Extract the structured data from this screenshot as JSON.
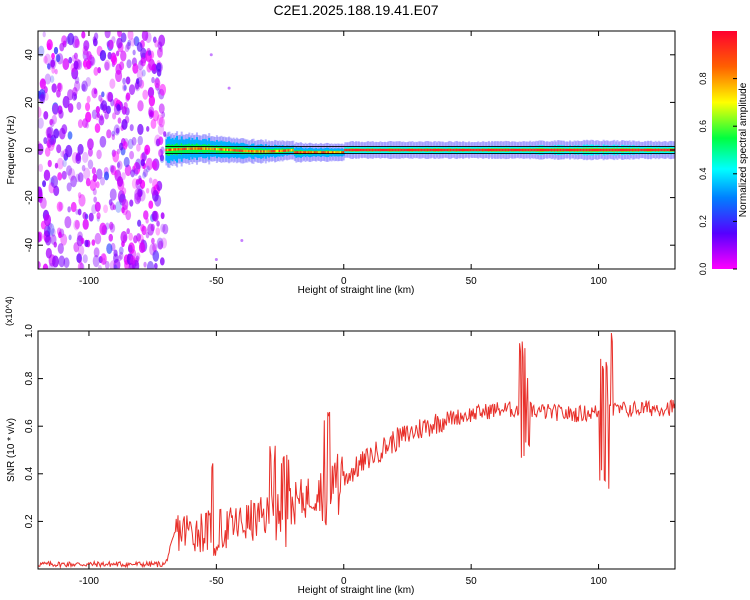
{
  "title": "C2E1.2025.188.19.41.E07",
  "colors": {
    "snr_line": "#e8302a",
    "frame": "#000000",
    "background": "#ffffff"
  },
  "chart_data": [
    {
      "type": "heatmap",
      "xlabel": "Height of straight line (km)",
      "ylabel": "Frequency (Hz)",
      "xlim": [
        -120,
        130
      ],
      "ylim": [
        -50,
        50
      ],
      "xticks": [
        -100,
        -50,
        0,
        50,
        100
      ],
      "yticks": [
        -40,
        -20,
        0,
        20,
        40
      ],
      "colorbar": {
        "label": "Normalized spectral amplitude",
        "range": [
          0,
          1
        ],
        "ticks": [
          "0.0",
          "0.2",
          "0.4",
          "0.6",
          "0.8"
        ],
        "colormap": "rainbow (magenta-blue-cyan-green-yellow-red)"
      },
      "features": {
        "noise_region_x": [
          -120,
          -70
        ],
        "noise_amplitude_range": [
          0.0,
          0.25
        ],
        "signal_band_center_hz": 0,
        "signal_band_start_km": -70,
        "signal_band_end_km": 130,
        "band_halfwidth_hz": [
          [
            -70,
            5
          ],
          [
            -40,
            3
          ],
          [
            -20,
            2
          ],
          [
            0,
            1.5
          ],
          [
            60,
            1.5
          ],
          [
            100,
            2
          ],
          [
            130,
            1.5
          ]
        ],
        "peak_amplitude": 0.95
      },
      "grid": false
    },
    {
      "type": "line",
      "xlabel": "Height of straight line (km)",
      "ylabel": "SNR (10 * v/v)",
      "yscale_label": "(x10^4)",
      "xlim": [
        -120,
        130
      ],
      "ylim": [
        0,
        1.0
      ],
      "xticks": [
        -100,
        -50,
        0,
        50,
        100
      ],
      "yticks": [
        0.2,
        0.4,
        0.6,
        0.8,
        1.0
      ],
      "series": [
        {
          "color": "#e8302a",
          "trend": {
            "x": [
              -120,
              -70,
              -66,
              -50,
              -40,
              -30,
              -20,
              -10,
              0,
              10,
              20,
              30,
              40,
              50,
              60,
              70,
              80,
              90,
              100,
              110,
              130
            ],
            "y": [
              0.02,
              0.02,
              0.16,
              0.16,
              0.19,
              0.22,
              0.27,
              0.33,
              0.38,
              0.47,
              0.54,
              0.59,
              0.63,
              0.65,
              0.67,
              0.67,
              0.66,
              0.65,
              0.66,
              0.67,
              0.68
            ]
          },
          "spikes": [
            {
              "x": -51,
              "y": 0.45,
              "min": 0.05
            },
            {
              "x": -28,
              "y": 0.53,
              "min": 0.06
            },
            {
              "x": -23,
              "y": 0.48,
              "min": 0.08
            },
            {
              "x": -7,
              "y": 0.69,
              "min": 0.16
            },
            {
              "x": -2,
              "y": 0.5,
              "min": 0.2
            },
            {
              "x": 70,
              "y": 0.96,
              "min": 0.42
            },
            {
              "x": 72,
              "y": 0.82,
              "min": 0.46
            },
            {
              "x": 104,
              "y": 1.0,
              "min": 0.32
            },
            {
              "x": 102,
              "y": 0.9,
              "min": 0.36
            }
          ]
        }
      ],
      "grid": false
    }
  ]
}
